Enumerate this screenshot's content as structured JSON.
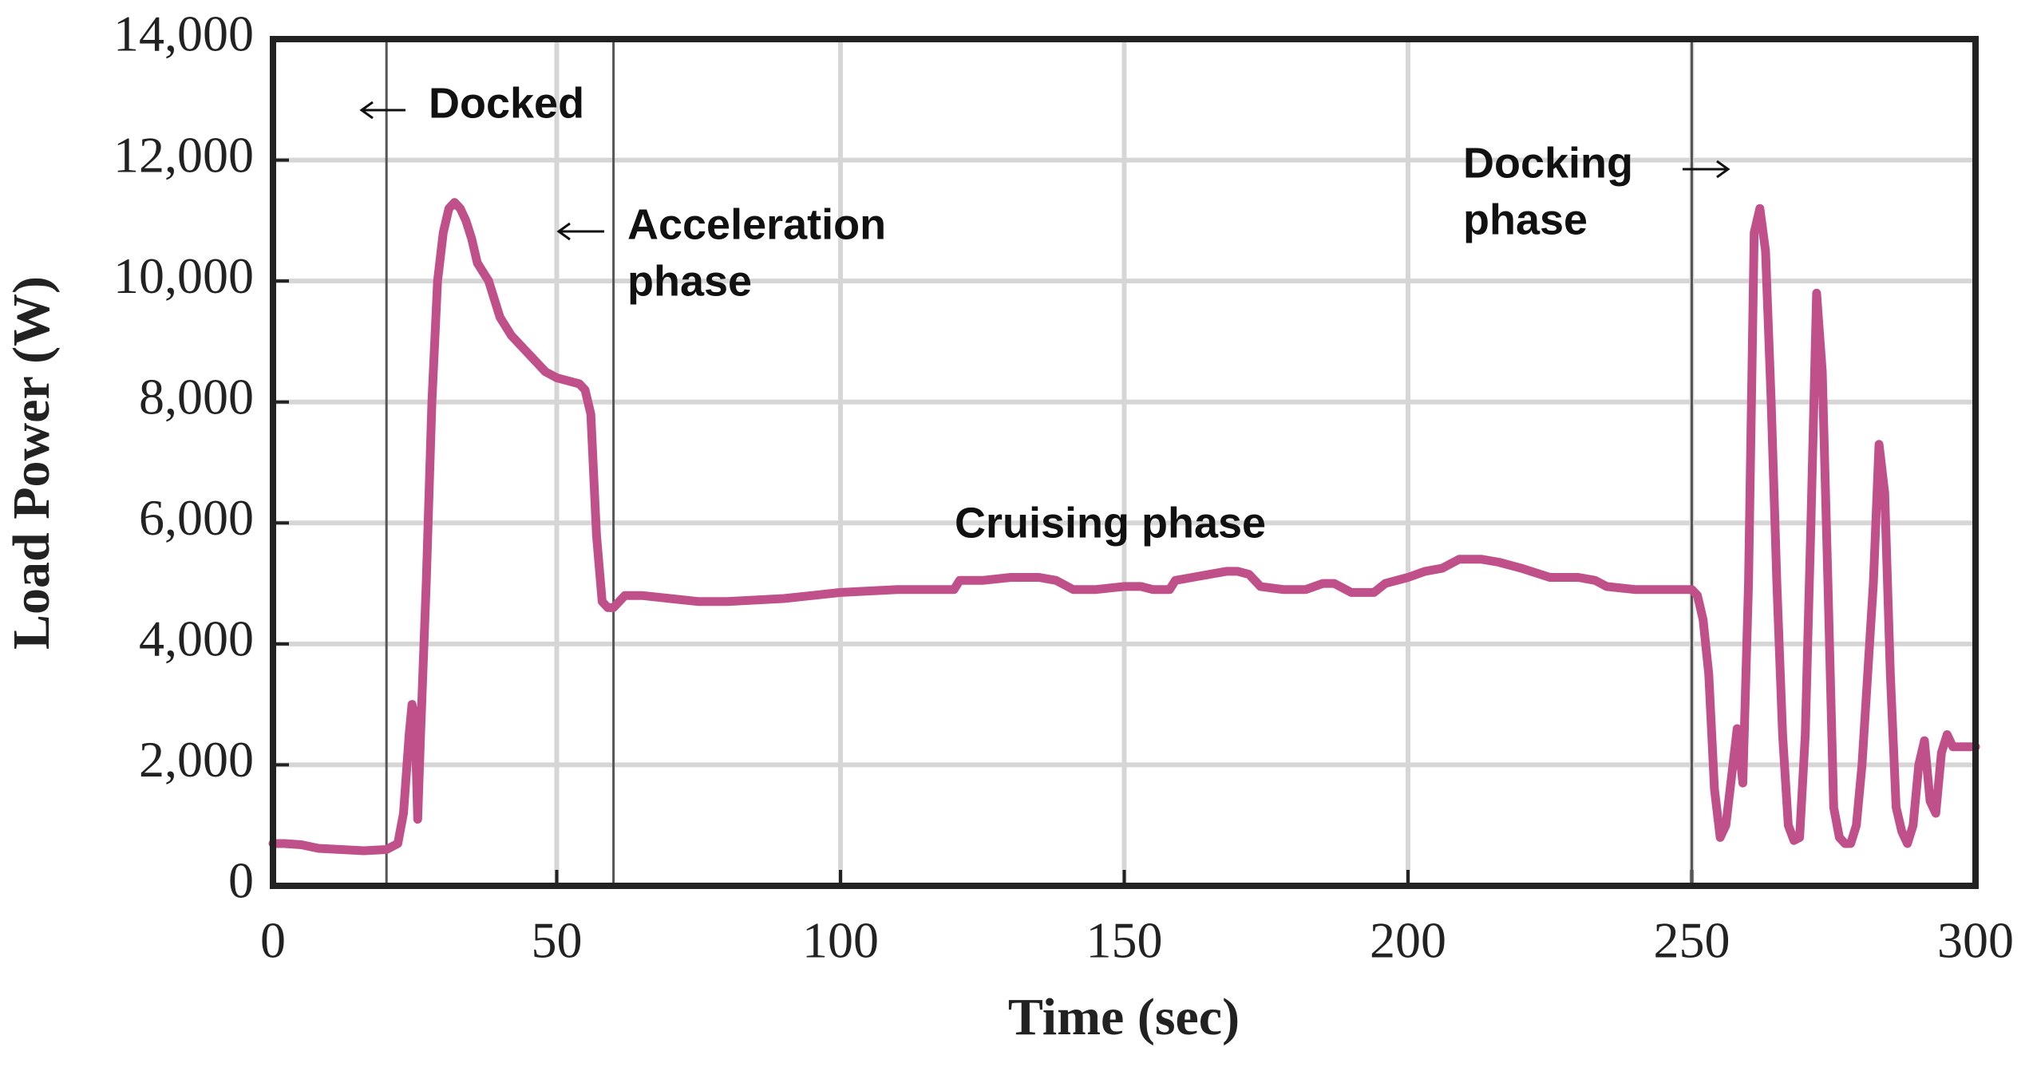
{
  "chart_data": {
    "type": "line",
    "x_label": "Time (sec)",
    "y_label": "Load Power (W)",
    "xlim": [
      0,
      300
    ],
    "ylim": [
      0,
      14000
    ],
    "xticks": [
      0,
      50,
      100,
      150,
      200,
      250,
      300
    ],
    "yticks": [
      0,
      {
        "value": 2000,
        "label": "2,000"
      },
      {
        "value": 4000,
        "label": "4,000"
      },
      {
        "value": 6000,
        "label": "6,000"
      },
      {
        "value": 8000,
        "label": "8,000"
      },
      {
        "value": 10000,
        "label": "10,000"
      },
      {
        "value": 12000,
        "label": "12,000"
      },
      {
        "value": 14000,
        "label": "14,000"
      }
    ],
    "grid": true,
    "phase_lines": [
      20,
      60,
      250
    ],
    "annotations": [
      [
        "Docked"
      ],
      [
        "Acceleration",
        "phase"
      ],
      [
        "Cruising phase"
      ],
      [
        "Docking",
        "phase"
      ]
    ],
    "series": [
      {
        "name": "Load Power",
        "color": "#c0508a",
        "x": [
          0,
          2,
          5,
          8,
          12,
          16,
          20,
          22,
          23,
          24,
          24.5,
          25,
          25.5,
          26,
          27,
          28,
          29,
          30,
          31,
          32,
          33,
          34,
          35,
          36,
          38,
          40,
          42,
          44,
          46,
          48,
          50,
          52,
          54,
          55,
          56,
          57,
          58,
          59,
          60,
          62,
          65,
          70,
          75,
          80,
          90,
          100,
          110,
          120,
          121,
          125,
          130,
          135,
          138,
          141,
          145,
          150,
          153,
          155,
          158,
          159,
          162,
          165,
          168,
          170,
          172,
          174,
          178,
          182,
          185,
          187,
          190,
          194,
          196,
          200,
          203,
          206,
          209,
          213,
          216,
          220,
          225,
          230,
          233,
          235,
          240,
          245,
          250,
          251,
          252,
          253,
          254,
          255,
          256,
          257,
          258,
          259,
          260,
          261,
          262,
          263,
          264,
          265,
          266,
          267,
          268,
          269,
          270,
          271,
          272,
          273,
          274,
          275,
          276,
          277,
          278,
          279,
          280,
          281,
          282,
          283,
          284,
          285,
          286,
          287,
          288,
          289,
          290,
          291,
          292,
          293,
          294,
          295,
          296,
          297,
          300
        ],
        "values": [
          700,
          700,
          680,
          620,
          600,
          580,
          600,
          700,
          1200,
          2500,
          3000,
          2800,
          1100,
          2500,
          5000,
          8000,
          10000,
          10800,
          11200,
          11300,
          11200,
          11000,
          10700,
          10300,
          10000,
          9400,
          9100,
          8900,
          8700,
          8500,
          8400,
          8350,
          8300,
          8200,
          7800,
          5800,
          4700,
          4600,
          4600,
          4800,
          4800,
          4750,
          4700,
          4700,
          4750,
          4850,
          4900,
          4900,
          5050,
          5050,
          5100,
          5100,
          5050,
          4900,
          4900,
          4950,
          4950,
          4900,
          4900,
          5050,
          5100,
          5150,
          5200,
          5200,
          5150,
          4950,
          4900,
          4900,
          5000,
          5000,
          4850,
          4850,
          5000,
          5100,
          5200,
          5250,
          5400,
          5400,
          5350,
          5250,
          5100,
          5100,
          5050,
          4950,
          4900,
          4900,
          4900,
          4800,
          4400,
          3500,
          1600,
          800,
          1000,
          1800,
          2600,
          1700,
          5000,
          10800,
          11200,
          10500,
          8000,
          5000,
          2500,
          1000,
          750,
          800,
          2500,
          6000,
          9800,
          8500,
          5000,
          1300,
          800,
          700,
          700,
          1000,
          2000,
          3500,
          5000,
          7300,
          6500,
          3500,
          1300,
          900,
          700,
          1000,
          2000,
          2400,
          1400,
          1200,
          2200,
          2500,
          2300,
          2300,
          2300
        ]
      }
    ]
  }
}
